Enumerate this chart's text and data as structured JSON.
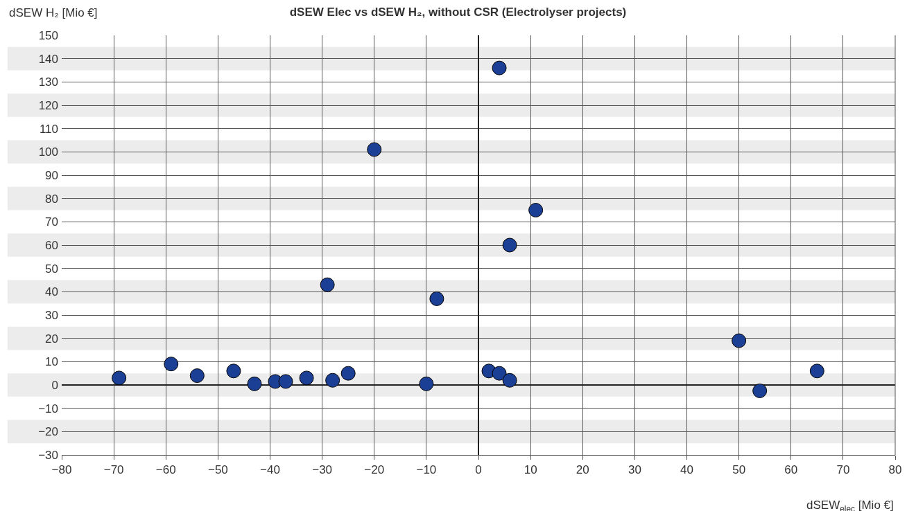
{
  "chart_data": {
    "type": "scatter",
    "title": "dSEW Elec vs dSEW H₂, without CSR (Electrolyser projects)",
    "xlabel": "dSEW$_{elec}$ [Mio €]",
    "ylabel": "dSEW H₂ [Mio €]",
    "x": [
      -69,
      -59,
      -54,
      -47,
      -43,
      -39,
      -37,
      -33,
      -29,
      -28,
      -25,
      -20,
      -10,
      -8,
      2,
      4,
      4,
      6,
      6,
      11,
      50,
      54,
      65
    ],
    "values": [
      3,
      9,
      4,
      6,
      0.5,
      1.5,
      1.5,
      3,
      43,
      2,
      5,
      101,
      0.5,
      37,
      6,
      5,
      136,
      2,
      60,
      75,
      19,
      -2.5,
      6
    ],
    "color": "#1b3f94",
    "marker": "circle",
    "xlim": [
      -80,
      80
    ],
    "xticks": [
      -80,
      -70,
      -60,
      -50,
      -40,
      -30,
      -20,
      -10,
      0,
      10,
      20,
      30,
      40,
      50,
      60,
      70,
      80
    ],
    "ylim": [
      -30,
      150
    ],
    "yticks": [
      -30,
      -20,
      -10,
      0,
      10,
      20,
      30,
      40,
      50,
      60,
      70,
      80,
      90,
      100,
      110,
      120,
      130,
      140,
      150
    ],
    "grid": true,
    "legend": false,
    "bands": [
      {
        "axis": "y",
        "from": 135,
        "to": 145,
        "color": "#ececec"
      },
      {
        "axis": "y",
        "from": 115,
        "to": 125,
        "color": "#ececec"
      },
      {
        "axis": "y",
        "from": 95,
        "to": 105,
        "color": "#ececec"
      },
      {
        "axis": "y",
        "from": 75,
        "to": 85,
        "color": "#ececec"
      },
      {
        "axis": "y",
        "from": 55,
        "to": 65,
        "color": "#ececec"
      },
      {
        "axis": "y",
        "from": 35,
        "to": 45,
        "color": "#ececec"
      },
      {
        "axis": "y",
        "from": 15,
        "to": 25,
        "color": "#ececec"
      },
      {
        "axis": "y",
        "from": -5,
        "to": 5,
        "color": "#ececec"
      },
      {
        "axis": "y",
        "from": -25,
        "to": -15,
        "color": "#ececec"
      }
    ]
  }
}
